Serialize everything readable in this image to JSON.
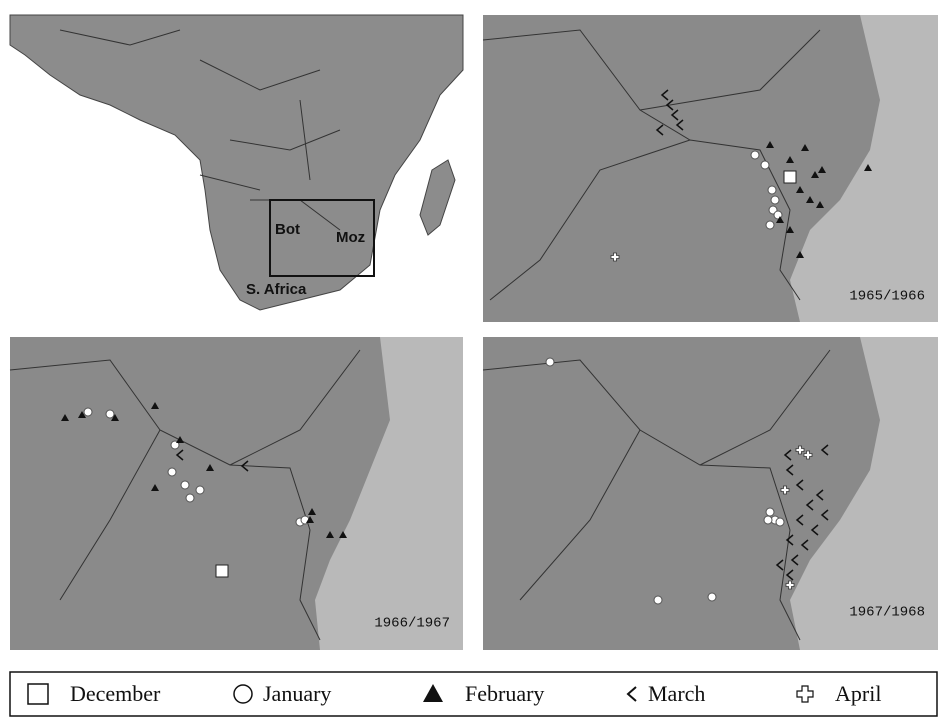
{
  "overview": {
    "labels": [
      "Bot",
      "Moz",
      "S. Africa"
    ]
  },
  "panels": [
    {
      "season": "1965/1966"
    },
    {
      "season": "1966/1967"
    },
    {
      "season": "1967/1968"
    }
  ],
  "legend": {
    "items": [
      "December",
      "January",
      "February",
      "March",
      "April"
    ]
  }
}
